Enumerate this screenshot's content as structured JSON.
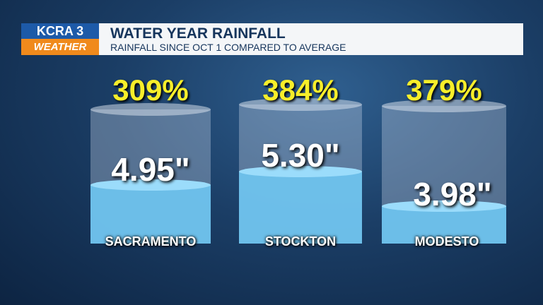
{
  "header": {
    "logo_station": "KCRA 3",
    "logo_brand": "WEATHER",
    "title": "WATER YEAR RAINFALL",
    "subtitle": "RAINFALL SINCE OCT 1 COMPARED TO AVERAGE"
  },
  "gauges": [
    {
      "city": "SACRAMENTO",
      "percent": "309%",
      "amount": "4.95\""
    },
    {
      "city": "STOCKTON",
      "percent": "384%",
      "amount": "5.30\""
    },
    {
      "city": "MODESTO",
      "percent": "379%",
      "amount": "3.98\""
    }
  ]
}
